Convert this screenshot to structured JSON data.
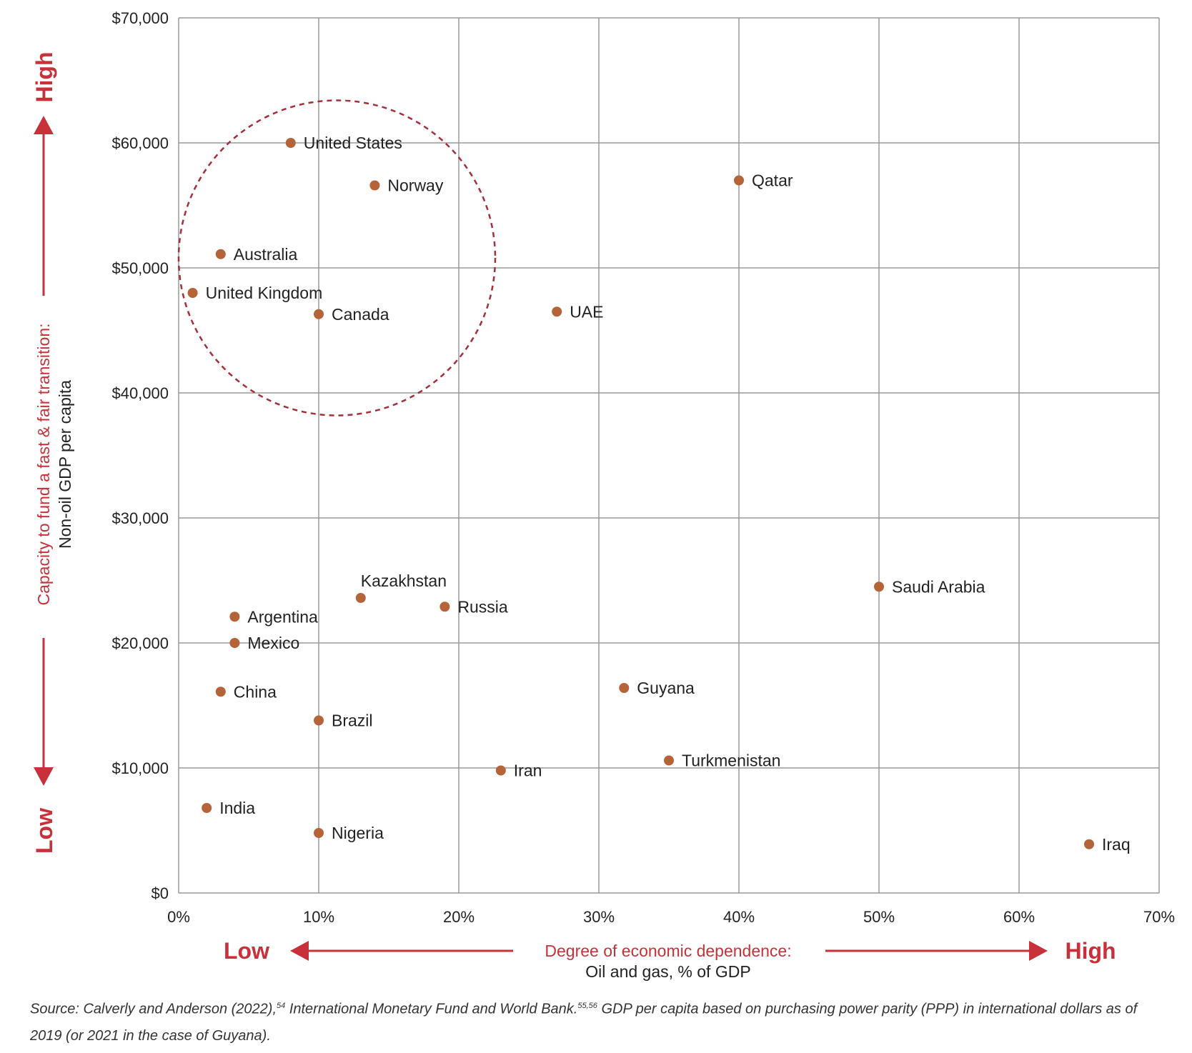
{
  "chart_data": {
    "type": "scatter",
    "x_axis": {
      "label_line1": "Degree of economic dependence:",
      "label_line2": "Oil and gas, % of GDP",
      "low_label": "Low",
      "high_label": "High",
      "range": [
        0,
        70
      ],
      "ticks": [
        0,
        10,
        20,
        30,
        40,
        50,
        60,
        70
      ],
      "tick_labels": [
        "0%",
        "10%",
        "20%",
        "30%",
        "40%",
        "50%",
        "60%",
        "70%"
      ]
    },
    "y_axis": {
      "label_line1": "Capacity to fund a fast & fair transition:",
      "label_line2": "Non-oil GDP per capita",
      "low_label": "Low",
      "high_label": "High",
      "range": [
        0,
        70000
      ],
      "ticks": [
        0,
        10000,
        20000,
        30000,
        40000,
        50000,
        60000,
        70000
      ],
      "tick_labels": [
        "$0",
        "$10,000",
        "$20,000",
        "$30,000",
        "$40,000",
        "$50,000",
        "$60,000",
        "$70,000"
      ]
    },
    "grid": true,
    "points": [
      {
        "label": "United States",
        "x": 8,
        "y": 60000
      },
      {
        "label": "Norway",
        "x": 14,
        "y": 56600
      },
      {
        "label": "Qatar",
        "x": 40,
        "y": 57000
      },
      {
        "label": "Australia",
        "x": 3,
        "y": 51100
      },
      {
        "label": "United Kingdom",
        "x": 1,
        "y": 48000
      },
      {
        "label": "Canada",
        "x": 10,
        "y": 46300
      },
      {
        "label": "UAE",
        "x": 27,
        "y": 46500
      },
      {
        "label": "Kazakhstan",
        "x": 13,
        "y": 23600,
        "label_pos": "above"
      },
      {
        "label": "Russia",
        "x": 19,
        "y": 22900
      },
      {
        "label": "Saudi Arabia",
        "x": 50,
        "y": 24500
      },
      {
        "label": "Argentina",
        "x": 4,
        "y": 22100
      },
      {
        "label": "Mexico",
        "x": 4,
        "y": 20000
      },
      {
        "label": "China",
        "x": 3,
        "y": 16100
      },
      {
        "label": "Guyana",
        "x": 31.8,
        "y": 16400
      },
      {
        "label": "Brazil",
        "x": 10,
        "y": 13800
      },
      {
        "label": "Turkmenistan",
        "x": 35,
        "y": 10600
      },
      {
        "label": "Iran",
        "x": 23,
        "y": 9800
      },
      {
        "label": "India",
        "x": 2,
        "y": 6800
      },
      {
        "label": "Nigeria",
        "x": 10,
        "y": 4800
      },
      {
        "label": "Iraq",
        "x": 65,
        "y": 3900
      }
    ],
    "highlight_circle": {
      "center_x": 11.3,
      "center_y": 50800,
      "radius_x": 11.3,
      "radius_y": 12600
    },
    "colors": {
      "point": "#b5643a",
      "accent": "#c8313a",
      "grid": "#9a9a9a",
      "circle": "#a3303a"
    }
  },
  "source": {
    "part1": "Source: Calverly and Anderson (2022),",
    "sup1": "54",
    "part2": " International Monetary Fund and World Bank.",
    "sup2": "55,56",
    "part3": " GDP per capita based on purchasing power parity (PPP) in international dollars as of 2019 (or 2021 in the case of Guyana)."
  }
}
